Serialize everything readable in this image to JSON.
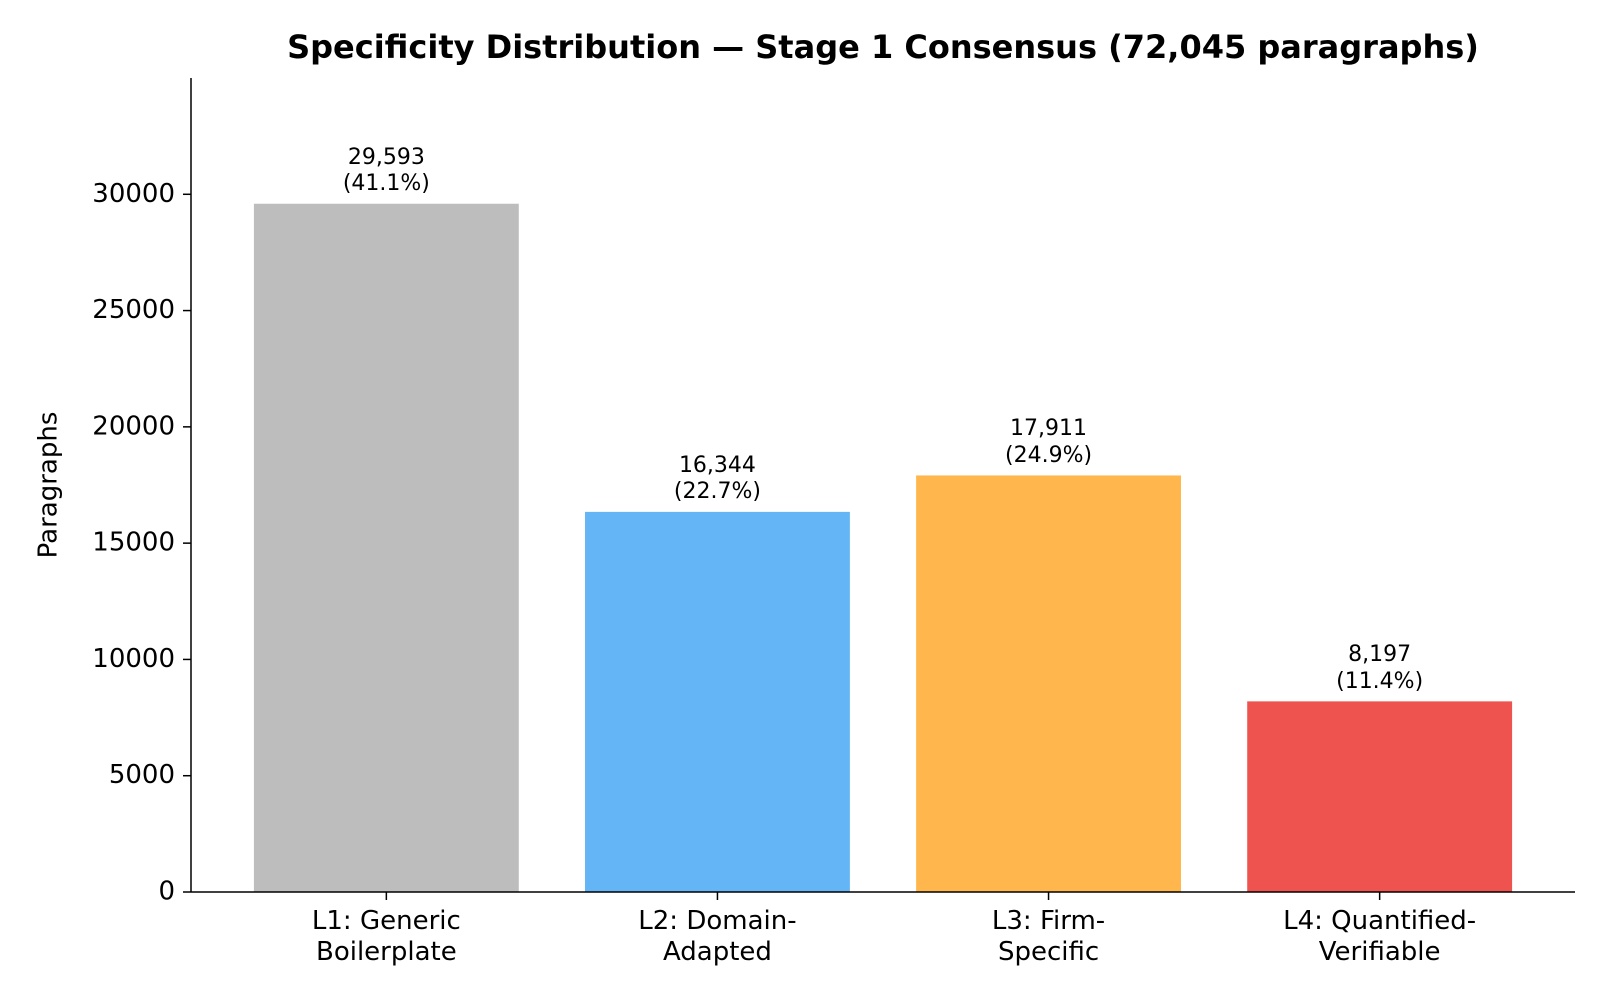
{
  "chart_data": {
    "type": "bar",
    "title": "Specificity Distribution — Stage 1 Consensus (72,045 paragraphs)",
    "y_label": "Paragraphs",
    "categories": [
      "L1: Generic\nBoilerplate",
      "L2: Domain-\nAdapted",
      "L3: Firm-\nSpecific",
      "L4: Quantified-\nVerifiable"
    ],
    "values": [
      29593,
      16344,
      17911,
      8197
    ],
    "value_labels": [
      "29,593\n(41.1%)",
      "16,344\n(22.7%)",
      "17,911\n(24.9%)",
      "8,197\n(11.4%)"
    ],
    "colors": [
      "#bdbdbd",
      "#64b5f6",
      "#ffb74d",
      "#ef5350"
    ],
    "ylim": [
      0,
      35000
    ],
    "yticks": [
      0,
      5000,
      10000,
      15000,
      20000,
      25000,
      30000
    ],
    "grid": false
  }
}
